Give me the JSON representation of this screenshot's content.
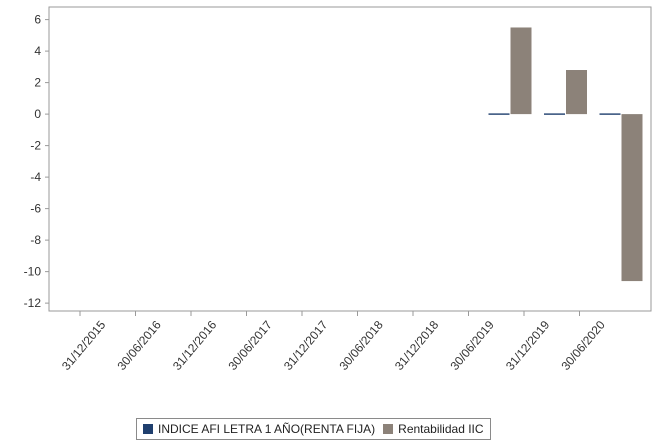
{
  "chart_data": {
    "type": "bar",
    "categories": [
      "31/12/2015",
      "30/06/2016",
      "31/12/2016",
      "30/06/2017",
      "31/12/2017",
      "30/06/2018",
      "31/12/2018",
      "30/06/2019",
      "31/12/2019",
      "30/06/2020"
    ],
    "series": [
      {
        "name": "INDICE AFI LETRA 1 AÑO(RENTA FIJA)",
        "color": "#1f3f6e",
        "values": [
          null,
          null,
          null,
          null,
          null,
          null,
          null,
          0.0,
          0.05,
          0.05
        ]
      },
      {
        "name": "Rentabilidad IIC",
        "color": "#8c8279",
        "values": [
          null,
          null,
          null,
          null,
          null,
          null,
          null,
          5.5,
          2.8,
          -10.6
        ]
      }
    ],
    "ylim": [
      -12.5,
      6.8
    ],
    "yticks": [
      6,
      4,
      2,
      0,
      -2,
      -4,
      -6,
      -8,
      -10,
      -12
    ],
    "xlabel": "",
    "ylabel": "",
    "legend": "bottom",
    "grid": false
  },
  "legend": {
    "items": [
      {
        "label": "INDICE AFI LETRA 1 AÑO(RENTA FIJA)",
        "color": "#1f3f6e"
      },
      {
        "label": "Rentabilidad IIC",
        "color": "#8c8279"
      }
    ]
  }
}
